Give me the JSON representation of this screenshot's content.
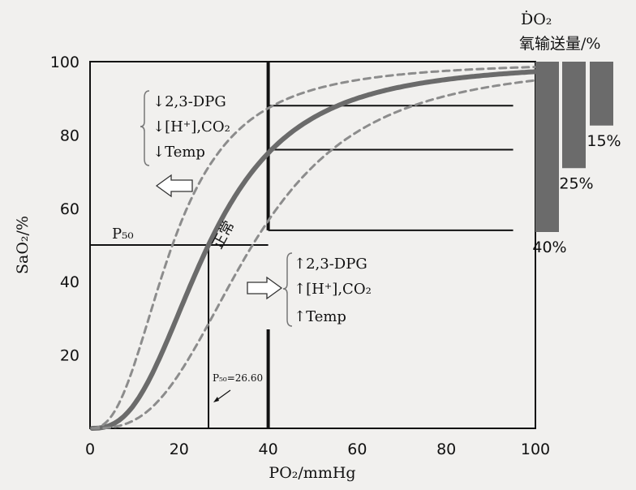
{
  "chart_data": {
    "type": "line",
    "xlabel": "PO₂/mmHg",
    "ylabel": "SaO₂/%",
    "xlim": [
      0,
      100
    ],
    "ylim": [
      0,
      100
    ],
    "x_ticks": [
      "0",
      "20",
      "40",
      "60",
      "80",
      "100"
    ],
    "y_ticks": [
      "20",
      "40",
      "60",
      "80",
      "100"
    ],
    "series": [
      {
        "name": "正常",
        "style": "solid",
        "p50": 26.6,
        "n": 2.7
      },
      {
        "name": "左移",
        "style": "dashed",
        "p50": 18.5,
        "n": 2.5
      },
      {
        "name": "右移",
        "style": "dashed",
        "p50": 36.5,
        "n": 2.9
      }
    ],
    "normal_label": "正常",
    "p50_label": "P₅₀",
    "p50_value_label": "P₅₀=26.60",
    "left_shift_factors": [
      "↓2,3-DPG",
      "↓[H⁺],CO₂",
      "↓Temp"
    ],
    "right_shift_factors": [
      "↑2,3-DPG",
      "↑[H⁺],CO₂",
      "↑Temp"
    ],
    "delivery_title_line1": "ḊO₂",
    "delivery_title_line2": "氧输送量/%",
    "delivery_lines_pct": [
      88,
      76,
      54
    ],
    "delivery_bars": [
      {
        "label": "40%",
        "pct": 40
      },
      {
        "label": "25%",
        "pct": 25
      },
      {
        "label": "15%",
        "pct": 15
      }
    ],
    "colors": {
      "solid": "#6b6b6b",
      "dashed": "#8c8c8c",
      "bars": "#6b6b6b",
      "axis": "#111111"
    }
  }
}
